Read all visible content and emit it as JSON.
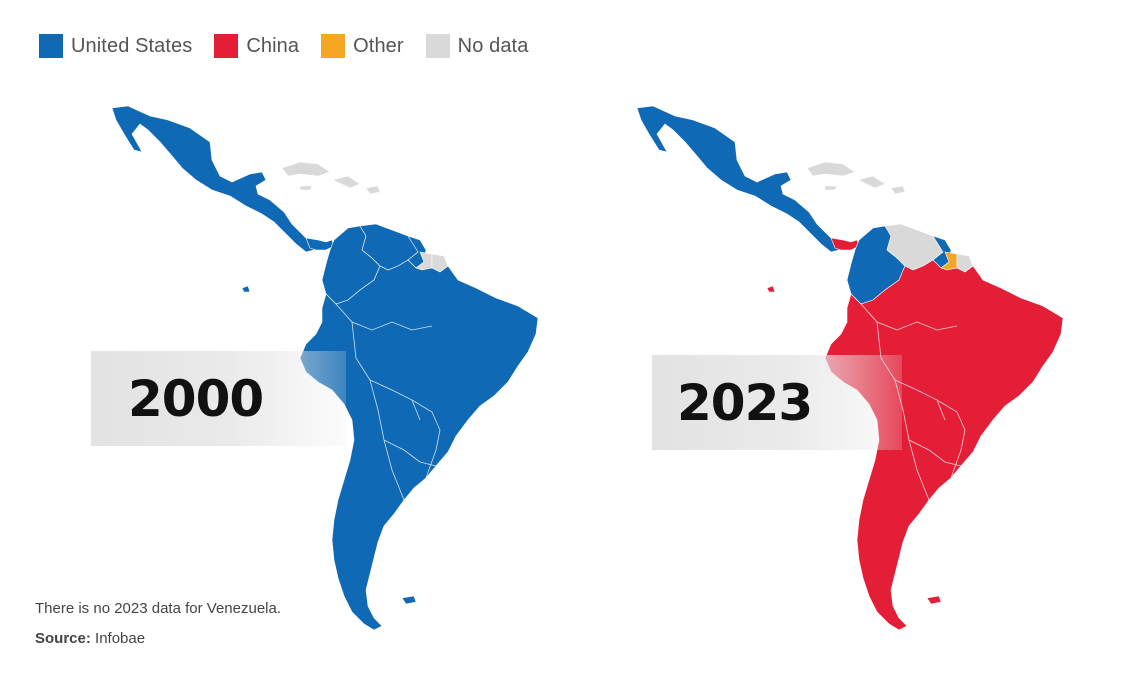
{
  "legend": [
    {
      "label": "United States",
      "color": "#1069b4"
    },
    {
      "label": "China",
      "color": "#e41e37"
    },
    {
      "label": "Other",
      "color": "#f5a623"
    },
    {
      "label": "No data",
      "color": "#d9d9d9"
    }
  ],
  "maps": [
    {
      "year": "2000",
      "continent_color": "#1069b4",
      "caribbean_color": "#d9d9d9",
      "guianas_color": "#d9d9d9",
      "suriname_color": "#d9d9d9",
      "venezuela_color": "#1069b4",
      "central_color": "#1069b4",
      "panama_color": "#1069b4",
      "colombia_color": "#1069b4",
      "guyana_color": "#1069b4"
    },
    {
      "year": "2023",
      "continent_color": "#e41e37",
      "caribbean_color": "#d9d9d9",
      "guianas_color": "#d9d9d9",
      "suriname_color": "#f5a623",
      "venezuela_color": "#d9d9d9",
      "central_color": "#1069b4",
      "panama_color": "#e41e37",
      "colombia_color": "#1069b4",
      "guyana_color": "#1069b4"
    }
  ],
  "footer": {
    "note": "There is no 2023 data for Venezuela.",
    "source_label": "Source:",
    "source_value": "Infobae"
  }
}
